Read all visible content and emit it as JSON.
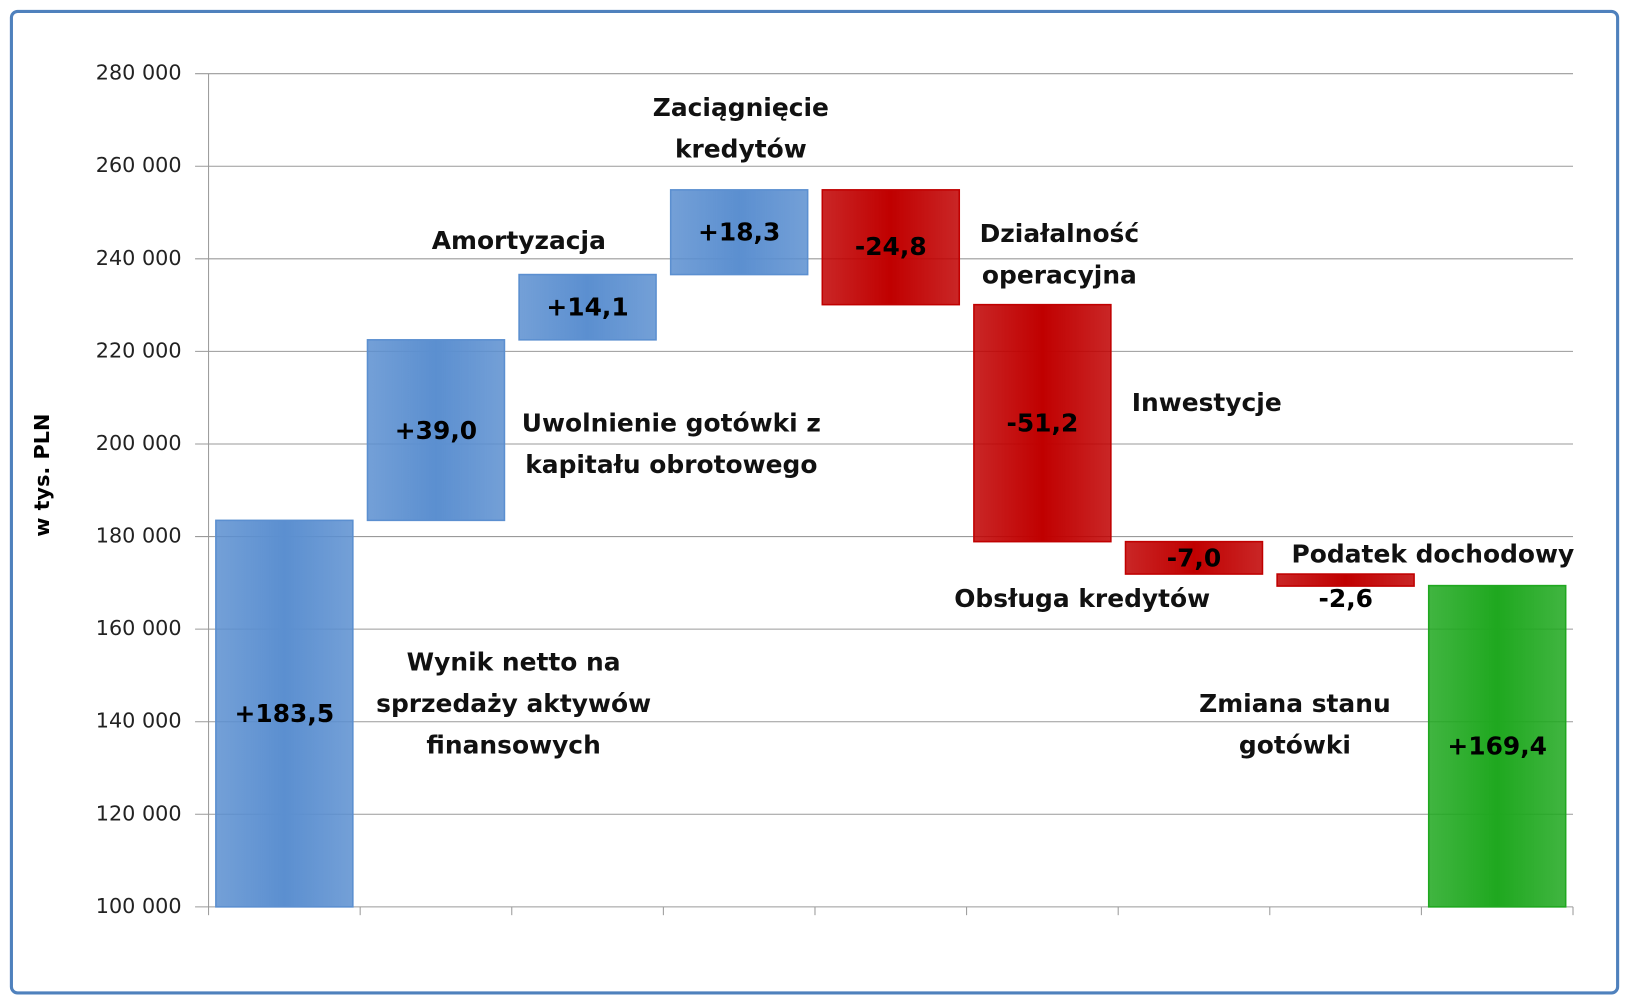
{
  "chart_data": {
    "type": "waterfall",
    "y_label": "w tys. PLN",
    "categories": [
      "Wynik netto na sprzedaży aktywów finansowych",
      "Uwolnienie gotówki z kapitału obrotowego",
      "Amortyzacja",
      "Zaciągnięcie kredytów",
      "Działalność operacyjna",
      "Inwestycje",
      "Obsługa kredytów",
      "Podatek dochodowy",
      "Zmiana stanu gotówki"
    ],
    "values": [
      183500,
      39000,
      14100,
      18300,
      -24800,
      -51200,
      -7000,
      -2600,
      169400
    ],
    "value_labels": [
      "+183,5",
      "+39,0",
      "+14,1",
      "+18,3",
      "-24,8",
      "-51,2",
      "-7,0",
      "-2,6",
      "+169,4"
    ],
    "total": [
      false,
      false,
      false,
      false,
      false,
      false,
      false,
      false,
      true
    ],
    "colors": [
      "#5b8fd0",
      "#5b8fd0",
      "#5b8fd0",
      "#5b8fd0",
      "#c00000",
      "#c00000",
      "#c00000",
      "#c00000",
      "#1fa81f"
    ],
    "ylim": [
      100000,
      280000
    ],
    "yticks": [
      {
        "value": 100000,
        "label": "100 000"
      },
      {
        "value": 120000,
        "label": "120 000"
      },
      {
        "value": 140000,
        "label": "140 000"
      },
      {
        "value": 160000,
        "label": "160 000"
      },
      {
        "value": 180000,
        "label": "180 000"
      },
      {
        "value": 200000,
        "label": "200 000"
      },
      {
        "value": 220000,
        "label": "220 000"
      },
      {
        "value": 240000,
        "label": "240 000"
      },
      {
        "value": 260000,
        "label": "260 000"
      },
      {
        "value": 280000,
        "label": "280 000"
      }
    ],
    "grid": true
  }
}
